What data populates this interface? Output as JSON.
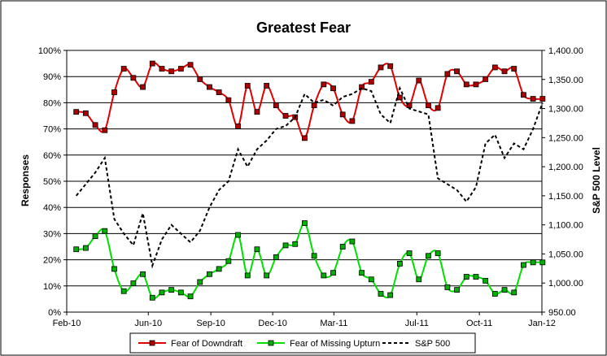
{
  "chart_data": {
    "type": "line",
    "title": "Greatest Fear",
    "ylabel": "Responses",
    "y2label": "S&P 500 Level",
    "ylim": [
      0,
      100
    ],
    "y2lim": [
      950,
      1400
    ],
    "y_ticks": [
      "0%",
      "10%",
      "20%",
      "30%",
      "40%",
      "50%",
      "60%",
      "70%",
      "80%",
      "90%",
      "100%"
    ],
    "y2_ticks": [
      "950.00",
      "1,000.00",
      "1,050.00",
      "1,100.00",
      "1,150.00",
      "1,200.00",
      "1,250.00",
      "1,300.00",
      "1,350.00",
      "1,400.00"
    ],
    "x_ticks": [
      "Feb-10",
      "Jun-10",
      "Sep-10",
      "Dec-10",
      "Mar-11",
      "Jul-11",
      "Oct-11",
      "Jan-12"
    ],
    "grid": "horizontal",
    "legend_position": "bottom",
    "series": [
      {
        "name": "Fear of Downdraft",
        "color": "#e00000",
        "marker_color": "#b00000",
        "axis": "left",
        "x": [
          "2010-02-15",
          "2010-03-01",
          "2010-03-15",
          "2010-03-29",
          "2010-04-12",
          "2010-04-26",
          "2010-05-10",
          "2010-05-24",
          "2010-06-07",
          "2010-06-21",
          "2010-07-05",
          "2010-07-19",
          "2010-08-02",
          "2010-08-16",
          "2010-08-30",
          "2010-09-13",
          "2010-09-27",
          "2010-10-11",
          "2010-10-25",
          "2010-11-08",
          "2010-11-22",
          "2010-12-06",
          "2010-12-20",
          "2011-01-03",
          "2011-01-17",
          "2011-01-31",
          "2011-02-14",
          "2011-02-28",
          "2011-03-14",
          "2011-03-28",
          "2011-04-11",
          "2011-04-25",
          "2011-05-09",
          "2011-05-23",
          "2011-06-06",
          "2011-06-20",
          "2011-07-04",
          "2011-07-18",
          "2011-08-01",
          "2011-08-15",
          "2011-08-29",
          "2011-09-12",
          "2011-09-26",
          "2011-10-10",
          "2011-10-24",
          "2011-11-07",
          "2011-11-21",
          "2011-12-05",
          "2011-12-19",
          "2012-01-02"
        ],
        "values": [
          76.5,
          76,
          71.5,
          69.5,
          84,
          93,
          89.5,
          86,
          95,
          93,
          92,
          93,
          94.5,
          89,
          86,
          84,
          81,
          71,
          86.5,
          76.5,
          86.5,
          79,
          75,
          74.5,
          66.5,
          79,
          87,
          85.5,
          75.5,
          73,
          86,
          88,
          93.5,
          94,
          82,
          79,
          88.5,
          79,
          78,
          91,
          92,
          87,
          87,
          89,
          93.5,
          92,
          93,
          83,
          81.5,
          81.5
        ]
      },
      {
        "name": "Fear of Missing Upturn",
        "color": "#00e000",
        "marker_color": "#00b000",
        "axis": "left",
        "x": [
          "2010-02-15",
          "2010-03-01",
          "2010-03-15",
          "2010-03-29",
          "2010-04-12",
          "2010-04-26",
          "2010-05-10",
          "2010-05-24",
          "2010-06-07",
          "2010-06-21",
          "2010-07-05",
          "2010-07-19",
          "2010-08-02",
          "2010-08-16",
          "2010-08-30",
          "2010-09-13",
          "2010-09-27",
          "2010-10-11",
          "2010-10-25",
          "2010-11-08",
          "2010-11-22",
          "2010-12-06",
          "2010-12-20",
          "2011-01-03",
          "2011-01-17",
          "2011-01-31",
          "2011-02-14",
          "2011-02-28",
          "2011-03-14",
          "2011-03-28",
          "2011-04-11",
          "2011-04-25",
          "2011-05-09",
          "2011-05-23",
          "2011-06-06",
          "2011-06-20",
          "2011-07-04",
          "2011-07-18",
          "2011-08-01",
          "2011-08-15",
          "2011-08-29",
          "2011-09-12",
          "2011-09-26",
          "2011-10-10",
          "2011-10-24",
          "2011-11-07",
          "2011-11-21",
          "2011-12-05",
          "2011-12-19",
          "2012-01-02"
        ],
        "values": [
          24,
          24.5,
          29,
          31,
          16.5,
          8,
          11,
          14.5,
          5.5,
          7.5,
          8.5,
          7.5,
          6,
          11.5,
          14.5,
          16.5,
          19.5,
          29.5,
          14,
          24,
          14,
          21,
          25.5,
          26,
          34,
          21.5,
          14,
          15,
          25,
          27,
          15,
          12.5,
          7,
          6.5,
          18.5,
          22.5,
          12.5,
          21.5,
          22.5,
          9.5,
          8.5,
          13.5,
          13.5,
          12,
          7,
          8.5,
          7.5,
          18,
          19,
          19
        ]
      },
      {
        "name": "S&P 500",
        "color": "#000000",
        "axis": "right",
        "style": "dashed",
        "x": [
          "2010-02-15",
          "2010-03-01",
          "2010-03-15",
          "2010-03-29",
          "2010-04-12",
          "2010-04-26",
          "2010-05-10",
          "2010-05-24",
          "2010-06-07",
          "2010-06-21",
          "2010-07-05",
          "2010-07-19",
          "2010-08-02",
          "2010-08-16",
          "2010-08-30",
          "2010-09-13",
          "2010-09-27",
          "2010-10-11",
          "2010-10-25",
          "2010-11-08",
          "2010-11-22",
          "2010-12-06",
          "2010-12-20",
          "2011-01-03",
          "2011-01-17",
          "2011-01-31",
          "2011-02-14",
          "2011-02-28",
          "2011-03-14",
          "2011-03-28",
          "2011-04-11",
          "2011-04-25",
          "2011-05-09",
          "2011-05-23",
          "2011-06-06",
          "2011-06-20",
          "2011-07-04",
          "2011-07-18",
          "2011-08-01",
          "2011-08-15",
          "2011-08-29",
          "2011-09-12",
          "2011-09-26",
          "2011-10-10",
          "2011-10-24",
          "2011-11-07",
          "2011-11-21",
          "2011-12-05",
          "2011-12-19",
          "2012-01-02"
        ],
        "values": [
          1150,
          1170,
          1190,
          1215,
          1110,
          1085,
          1065,
          1120,
          1030,
          1075,
          1100,
          1085,
          1070,
          1090,
          1130,
          1160,
          1175,
          1230,
          1200,
          1230,
          1245,
          1265,
          1270,
          1285,
          1325,
          1310,
          1315,
          1305,
          1320,
          1325,
          1335,
          1330,
          1290,
          1275,
          1335,
          1300,
          1295,
          1290,
          1180,
          1170,
          1160,
          1140,
          1165,
          1240,
          1255,
          1215,
          1240,
          1230,
          1265,
          1310
        ]
      }
    ]
  }
}
